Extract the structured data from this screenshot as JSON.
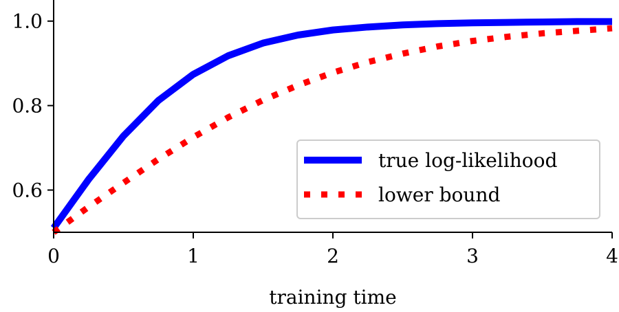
{
  "chart_data": {
    "type": "line",
    "title": "",
    "xlabel": "training time",
    "ylabel": "",
    "xlim": [
      0,
      4
    ],
    "ylim": [
      0.5,
      1.05
    ],
    "grid": false,
    "legend_position": "lower-right",
    "x_ticks": [
      {
        "value": 0,
        "label": "0"
      },
      {
        "value": 1,
        "label": "1"
      },
      {
        "value": 2,
        "label": "2"
      },
      {
        "value": 3,
        "label": "3"
      },
      {
        "value": 4,
        "label": "4"
      }
    ],
    "y_ticks": [
      {
        "value": 0.6,
        "label": "0.6"
      },
      {
        "value": 0.8,
        "label": "0.8"
      },
      {
        "value": 1.0,
        "label": "1.0"
      }
    ],
    "series": [
      {
        "name": "true log-likelihood",
        "color": "#0000ff",
        "style": "solid",
        "x": [
          0,
          0.25,
          0.5,
          0.75,
          1.0,
          1.25,
          1.5,
          1.75,
          2.0,
          2.25,
          2.5,
          2.75,
          3.0,
          3.25,
          3.5,
          3.75,
          4.0
        ],
        "y": [
          0.51,
          0.625,
          0.728,
          0.812,
          0.874,
          0.918,
          0.948,
          0.967,
          0.979,
          0.986,
          0.991,
          0.994,
          0.996,
          0.997,
          0.998,
          0.999,
          0.999
        ]
      },
      {
        "name": "lower bound",
        "color": "#ff0000",
        "style": "dotted",
        "x": [
          0,
          0.25,
          0.5,
          0.75,
          1.0,
          1.25,
          1.5,
          1.75,
          2.0,
          2.25,
          2.5,
          2.75,
          3.0,
          3.25,
          3.5,
          3.75,
          4.0
        ],
        "y": [
          0.5,
          0.56,
          0.617,
          0.673,
          0.725,
          0.772,
          0.813,
          0.848,
          0.878,
          0.903,
          0.923,
          0.94,
          0.953,
          0.963,
          0.971,
          0.977,
          0.983
        ]
      }
    ]
  }
}
